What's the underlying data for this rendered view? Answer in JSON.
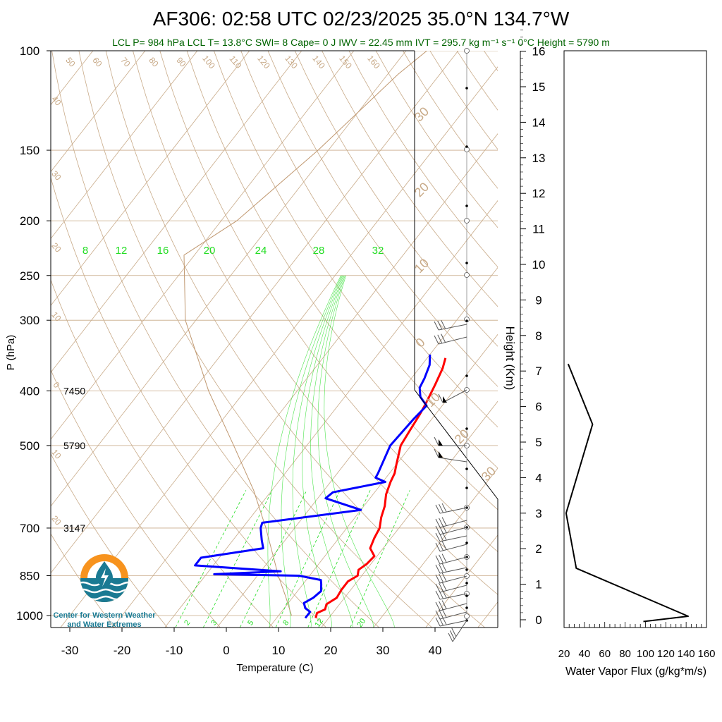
{
  "title": "AF306: 02:58 UTC 02/23/2025  35.0°N 134.7°W",
  "subtitle": "LCL P= 984 hPa  LCL T= 13.8°C  SWI= 8  Cape= 0 J  IWV = 22.45 mm  IVT = 295.7 kg m⁻¹ s⁻¹  0°C Height = 5790 m",
  "logo_text": {
    "line1": "Center for Western Weather",
    "line2": "and Water Extremes"
  },
  "colors": {
    "temperature": "#ff0000",
    "dewpoint": "#0000ff",
    "subtitle": "#006400",
    "mixing_ratio": "#22dd22",
    "background_lines": "#c8aa88",
    "logo_orange": "#f7931e",
    "logo_teal": "#1a7a93"
  },
  "chart_data": [
    {
      "type": "line",
      "name": "skew-t",
      "xlabel": "Temperature (C)",
      "ylabel": "P (hPa)",
      "xlim": [
        -34,
        52
      ],
      "ylim": [
        1050,
        100
      ],
      "y_scale": "log",
      "x_ticks": [
        "-30",
        "-20",
        "-10",
        "0",
        "10",
        "20",
        "30",
        "40"
      ],
      "y_ticks": [
        "100",
        "150",
        "200",
        "250",
        "300",
        "400",
        "500",
        "700",
        "850",
        "1000"
      ],
      "height_labels": [
        {
          "p": 400,
          "text": "7450"
        },
        {
          "p": 500,
          "text": "5790"
        },
        {
          "p": 700,
          "text": "3147"
        }
      ],
      "mixing_ratio_labels": [
        "8",
        "12",
        "16",
        "20",
        "24",
        "28",
        "32"
      ],
      "mixing_ratio_bottom_labels": [
        "2",
        "3",
        "5",
        "8",
        "12",
        "20"
      ],
      "dry_adiabat_labels": [
        "50",
        "60",
        "70",
        "80",
        "90",
        "100",
        "110",
        "120",
        "130",
        "140",
        "150",
        "160"
      ],
      "isotherm_labels": [
        "40",
        "30",
        "20",
        "10",
        "0",
        "10",
        "20"
      ],
      "right_edge_labels": [
        "30",
        "20",
        "10",
        "0",
        "10",
        "20",
        "30"
      ],
      "series": [
        {
          "name": "",
          "key": "temperature",
          "points": [
            [
              1010,
              17.5
            ],
            [
              990,
              17.0
            ],
            [
              975,
              18.0
            ],
            [
              955,
              17.5
            ],
            [
              930,
              18.5
            ],
            [
              900,
              18.2
            ],
            [
              870,
              18.2
            ],
            [
              850,
              19.2
            ],
            [
              830,
              18.5
            ],
            [
              810,
              19.2
            ],
            [
              785,
              19.5
            ],
            [
              760,
              17.5
            ],
            [
              730,
              16.8
            ],
            [
              700,
              16.3
            ],
            [
              670,
              15.0
            ],
            [
              640,
              14.0
            ],
            [
              610,
              12.5
            ],
            [
              580,
              11.5
            ],
            [
              560,
              11.0
            ],
            [
              540,
              10.0
            ],
            [
              500,
              8.0
            ],
            [
              470,
              7.5
            ],
            [
              440,
              7.0
            ],
            [
              420,
              6.5
            ],
            [
              390,
              5.5
            ],
            [
              365,
              4.5
            ],
            [
              350,
              3.5
            ]
          ]
        },
        {
          "name": "",
          "key": "dewpoint",
          "points": [
            [
              1010,
              15.5
            ],
            [
              985,
              15.5
            ],
            [
              970,
              14.0
            ],
            [
              950,
              13.0
            ],
            [
              930,
              14.0
            ],
            [
              905,
              14.5
            ],
            [
              880,
              13.5
            ],
            [
              865,
              12.8
            ],
            [
              850,
              8.0
            ],
            [
              845,
              -8.5
            ],
            [
              835,
              3.8
            ],
            [
              815,
              -13.5
            ],
            [
              790,
              -13.5
            ],
            [
              760,
              -3.0
            ],
            [
              735,
              -4.5
            ],
            [
              700,
              -6.5
            ],
            [
              685,
              -7.0
            ],
            [
              650,
              10.0
            ],
            [
              620,
              1.5
            ],
            [
              605,
              2.0
            ],
            [
              580,
              10.5
            ],
            [
              570,
              8.0
            ],
            [
              560,
              7.8
            ],
            [
              500,
              6.0
            ],
            [
              450,
              6.5
            ],
            [
              425,
              7.0
            ],
            [
              410,
              4.5
            ],
            [
              395,
              3.0
            ],
            [
              380,
              2.5
            ],
            [
              360,
              1.5
            ],
            [
              345,
              0.0
            ]
          ]
        }
      ]
    },
    {
      "type": "line",
      "name": "water-vapor-flux",
      "xlabel": "Water Vapor Flux (g/kg*m/s)",
      "ylabel": "Height (Km)",
      "xlim": [
        20,
        160
      ],
      "ylim": [
        0,
        16
      ],
      "x_ticks": [
        "20",
        "40",
        "60",
        "80",
        "100",
        "120",
        "140",
        "160"
      ],
      "y_ticks": [
        "0",
        "1",
        "2",
        "3",
        "4",
        "5",
        "6",
        "7",
        "8",
        "9",
        "10",
        "11",
        "12",
        "13",
        "14",
        "15",
        "16"
      ],
      "series": [
        {
          "name": "",
          "points": [
            [
              98,
              -0.05
            ],
            [
              142,
              0.1
            ],
            [
              32,
              1.45
            ],
            [
              22,
              3.0
            ],
            [
              48,
              5.5
            ],
            [
              24,
              7.2
            ]
          ]
        }
      ]
    }
  ]
}
